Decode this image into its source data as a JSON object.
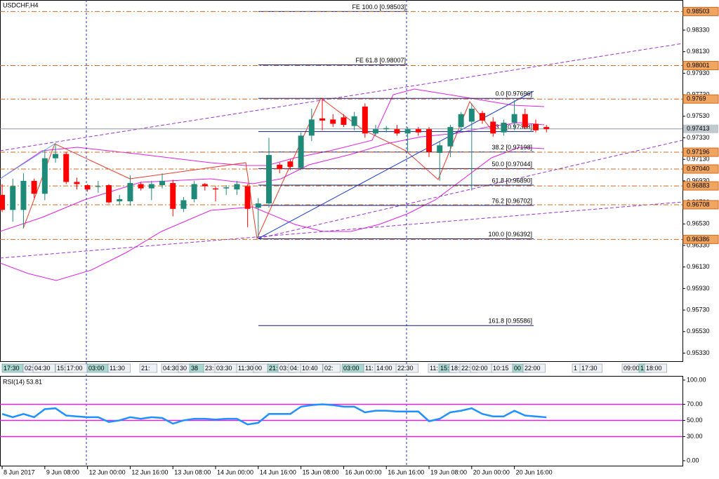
{
  "chart_data": [
    {
      "type": "candlestick",
      "title": "USDCHF,H4",
      "up_color": "#1f8a78",
      "down_color": "#ff0000",
      "candles": {
        "open": [
          0.968,
          0.9666,
          0.9666,
          0.9693,
          0.9681,
          0.9714,
          0.9718,
          0.9692,
          0.9689,
          0.9688,
          0.9689,
          0.9674,
          0.9674,
          0.969,
          0.9686,
          0.9689,
          0.9691,
          0.9667,
          0.9676,
          0.969,
          0.9686,
          0.9686,
          0.9685,
          0.9688,
          0.9668,
          0.9672,
          0.9708,
          0.9711,
          0.9705,
          0.9735,
          0.9751,
          0.975,
          0.9752,
          0.9744,
          0.9762,
          0.9737,
          0.9741,
          0.9741,
          0.9737,
          0.9741,
          0.9741,
          0.9719,
          0.9725,
          0.9743,
          0.9748,
          0.9756,
          0.9748,
          0.9738,
          0.9747,
          0.9755,
          0.9746,
          0.9743
        ],
        "high": [
          0.969,
          0.9695,
          0.97,
          0.9695,
          0.9722,
          0.9728,
          0.972,
          0.9696,
          0.969,
          0.9693,
          0.969,
          0.968,
          0.9698,
          0.9692,
          0.9693,
          0.97,
          0.9694,
          0.9678,
          0.9693,
          0.9691,
          0.9688,
          0.9689,
          0.9693,
          0.969,
          0.9677,
          0.9733,
          0.971,
          0.9713,
          0.9738,
          0.976,
          0.977,
          0.9755,
          0.9755,
          0.9757,
          0.9765,
          0.9745,
          0.9744,
          0.9745,
          0.9743,
          0.9743,
          0.9743,
          0.973,
          0.9745,
          0.9757,
          0.9765,
          0.9758,
          0.9752,
          0.975,
          0.9768,
          0.976,
          0.975,
          0.9745
        ],
        "low": [
          0.9664,
          0.9655,
          0.9649,
          0.9677,
          0.9675,
          0.971,
          0.969,
          0.9685,
          0.9683,
          0.9682,
          0.9672,
          0.9671,
          0.967,
          0.9684,
          0.9675,
          0.9686,
          0.966,
          0.9664,
          0.9673,
          0.9684,
          0.9674,
          0.968,
          0.968,
          0.965,
          0.9639,
          0.9668,
          0.97,
          0.9703,
          0.9703,
          0.973,
          0.974,
          0.9743,
          0.9743,
          0.974,
          0.9733,
          0.9735,
          0.9738,
          0.9735,
          0.972,
          0.9735,
          0.9715,
          0.9693,
          0.9715,
          0.9738,
          0.9684,
          0.9746,
          0.9734,
          0.9735,
          0.974,
          0.9741,
          0.9738,
          0.9738
        ],
        "close": [
          0.9666,
          0.9688,
          0.9693,
          0.9681,
          0.9714,
          0.9718,
          0.9692,
          0.969,
          0.9685,
          0.9688,
          0.9673,
          0.9676,
          0.9691,
          0.9686,
          0.969,
          0.9693,
          0.9667,
          0.9675,
          0.969,
          0.9688,
          0.9685,
          0.9687,
          0.969,
          0.9667,
          0.9672,
          0.9717,
          0.9704,
          0.9706,
          0.9735,
          0.975,
          0.9749,
          0.9746,
          0.9745,
          0.9753,
          0.9737,
          0.9741,
          0.9742,
          0.9737,
          0.9741,
          0.9738,
          0.972,
          0.9726,
          0.9743,
          0.9755,
          0.976,
          0.9749,
          0.9737,
          0.9747,
          0.9755,
          0.9743,
          0.974,
          0.9741
        ]
      },
      "xlim": [
        -0.2,
        63.75
      ],
      "xticks": [
        {
          "value": 0,
          "label": "8 Jun 2017"
        },
        {
          "value": 4,
          "label": "9 Jun 08:00"
        },
        {
          "value": 8,
          "label": "12 Jun 00:00"
        },
        {
          "value": 12,
          "label": "12 Jun 16:00"
        },
        {
          "value": 16,
          "label": "13 Jun 08:00"
        },
        {
          "value": 20,
          "label": "14 Jun 00:00"
        },
        {
          "value": 24,
          "label": "14 Jun 16:00"
        },
        {
          "value": 28,
          "label": "15 Jun 08:00"
        },
        {
          "value": 32,
          "label": "16 Jun 00:00"
        },
        {
          "value": 36,
          "label": "16 Jun 16:00"
        },
        {
          "value": 40,
          "label": "19 Jun 08:00"
        },
        {
          "value": 44,
          "label": "20 Jun 00:00"
        },
        {
          "value": 48,
          "label": "20 Jun 16:00"
        }
      ],
      "ylim": [
        0.95255,
        0.9861
      ],
      "yticks": [
        {
          "value": 0.9833,
          "label": "0.98330"
        },
        {
          "value": 0.9813,
          "label": "0.98130"
        },
        {
          "value": 0.9793,
          "label": "0.97930"
        },
        {
          "value": 0.9773,
          "label": "0.97730"
        },
        {
          "value": 0.9753,
          "label": "0.97530"
        },
        {
          "value": 0.9733,
          "label": "0.97330"
        },
        {
          "value": 0.9713,
          "label": "0.97130"
        },
        {
          "value": 0.9693,
          "label": "0.96930"
        },
        {
          "value": 0.9673,
          "label": "0.96730"
        },
        {
          "value": 0.9653,
          "label": "0.96530"
        },
        {
          "value": 0.9633,
          "label": "0.96330"
        },
        {
          "value": 0.9613,
          "label": "0.96130"
        },
        {
          "value": 0.9593,
          "label": "0.95930"
        },
        {
          "value": 0.9573,
          "label": "0.95730"
        },
        {
          "value": 0.9553,
          "label": "0.95530"
        },
        {
          "value": 0.9533,
          "label": "0.95330"
        }
      ],
      "levels": [
        0.98503,
        0.98001,
        0.9769,
        0.97196,
        {
          "value": 0.9704,
          "label": "0.97040"
        },
        0.96883,
        0.96708,
        0.96386
      ],
      "level_color": "#d2691e",
      "current_price": 0.97413,
      "expansion": [
        {
          "value": 0.98503,
          "label": "FE 100.0 [0.98503]"
        },
        {
          "value": 0.98007,
          "label": "FE 61.8 [0.98007]"
        }
      ],
      "retracement": [
        {
          "value": 0.97696,
          "label": "0.0 [0.97696]"
        },
        {
          "value": 0.97388,
          "label": "23.6 [0.97388]"
        },
        {
          "value": 0.97198,
          "label": "38.2 [0.97198]"
        },
        {
          "value": 0.97044,
          "label": "50.0 [0.97044]"
        },
        {
          "value": 0.9689,
          "label": "61.8 [0.96890]"
        },
        {
          "value": 0.96702,
          "label": "76.2 [0.96702]"
        },
        {
          "value": 0.96392,
          "label": "100.0 [0.96392]"
        },
        {
          "value": 0.95586,
          "label": "161.8 [0.95586]"
        }
      ],
      "tags": [
        "17:30",
        "02:",
        "04:30",
        "15:",
        "17:00",
        "03:00",
        "11:30",
        "21:",
        "04:30",
        "30",
        "38",
        "23:",
        "03:30",
        "11:30",
        "00",
        "21:",
        "03:",
        "04:",
        "10:40",
        "02:",
        "03:00",
        "11:",
        "14:00",
        "22:30",
        "11:",
        "15:",
        "18:",
        "22:",
        "02:00",
        "10:15",
        "00",
        "22:00",
        "1",
        "17:30",
        "09:00",
        "1",
        "18:00"
      ]
    },
    {
      "type": "line",
      "title": "RSI(14) 53.81",
      "color": "#1e90ff",
      "values": [
        58,
        54,
        58,
        54,
        64,
        65,
        56,
        55,
        54,
        54,
        48,
        50,
        54,
        52,
        54,
        53,
        46,
        50,
        52,
        52,
        51,
        52,
        52,
        45,
        47,
        58,
        58,
        58,
        67,
        69,
        70,
        69,
        67,
        67,
        60,
        62,
        62,
        61,
        61,
        61,
        49,
        52,
        60,
        62,
        65,
        58,
        55,
        55,
        62,
        56,
        55,
        53.81
      ],
      "ylim": [
        -7,
        104.3
      ],
      "yticks": [
        {
          "value": 100,
          "label": "100.00"
        },
        {
          "value": 70,
          "label": "70.00"
        },
        {
          "value": 50,
          "label": "50.00"
        },
        {
          "value": 30,
          "label": "30.00"
        },
        {
          "value": 0,
          "label": "0.00"
        }
      ],
      "levels": [
        70,
        50,
        30
      ],
      "level_color": "#e020e0"
    }
  ]
}
